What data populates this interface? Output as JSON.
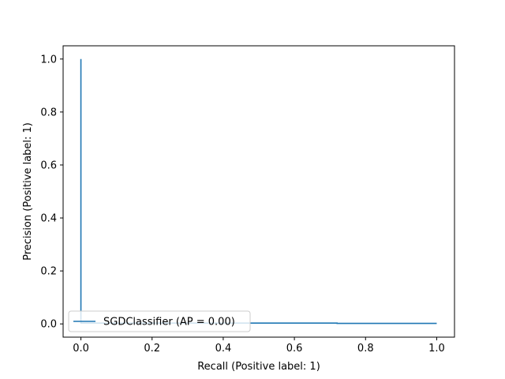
{
  "chart_data": {
    "type": "line",
    "title": "",
    "xlabel": "Recall (Positive label: 1)",
    "ylabel": "Precision (Positive label: 1)",
    "xlim": [
      -0.05,
      1.05
    ],
    "ylim": [
      -0.05,
      1.05
    ],
    "xticks": [
      "0.0",
      "0.2",
      "0.4",
      "0.6",
      "0.8",
      "1.0"
    ],
    "yticks": [
      "0.0",
      "0.2",
      "0.4",
      "0.6",
      "0.8",
      "1.0"
    ],
    "xtick_values": [
      0.0,
      0.2,
      0.4,
      0.6,
      0.8,
      1.0
    ],
    "ytick_values": [
      0.0,
      0.2,
      0.4,
      0.6,
      0.8,
      1.0
    ],
    "grid": false,
    "legend_position": "lower left",
    "series": [
      {
        "name": "SGDClassifier (AP = 0.00)",
        "color": "#1f77b4",
        "step": "post",
        "x": [
          1.0,
          0.72,
          0.0,
          0.0,
          0.0
        ],
        "y": [
          0.002,
          0.003,
          0.003,
          0.05,
          1.0
        ]
      }
    ]
  }
}
